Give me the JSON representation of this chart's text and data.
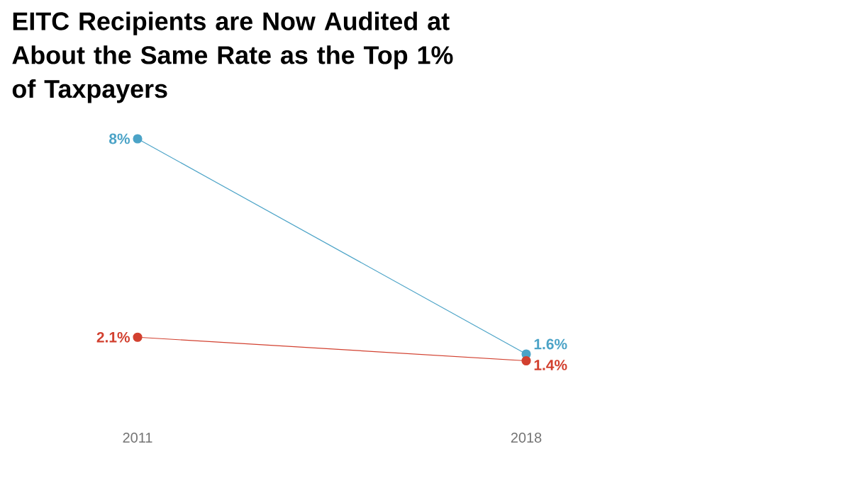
{
  "chart_data": {
    "type": "line",
    "title": "EITC Recipients are Now Audited at About the Same Rate as the Top 1% of Taxpayers",
    "categories": [
      "2011",
      "2018"
    ],
    "marker": "circle",
    "line_style": "solid",
    "grid": false,
    "legend": false,
    "series": [
      {
        "color": "#4ba3c7",
        "values": [
          8,
          1.6
        ],
        "value_labels": [
          "8%",
          "1.6%"
        ]
      },
      {
        "color": "#d2402f",
        "values": [
          2.1,
          1.4
        ],
        "value_labels": [
          "2.1%",
          "1.4%"
        ]
      }
    ]
  }
}
